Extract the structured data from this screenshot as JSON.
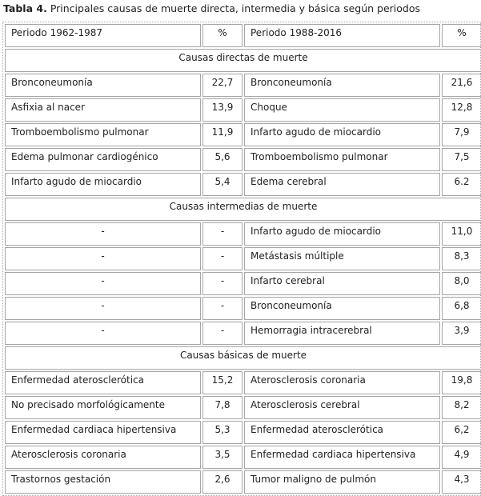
{
  "title": {
    "label": "Tabla 4.",
    "text": "Principales causas de muerte directa, intermedia y básica según periodos"
  },
  "header": [
    "Periodo 1962-1987",
    "%",
    "Periodo 1988-2016",
    "%"
  ],
  "sections": [
    {
      "title": "Causas directas de muerte",
      "rows": [
        [
          "Bronconeumonía",
          "22,7",
          "Bronconeumonía",
          "21,6"
        ],
        [
          "Asfixia al nacer",
          "13,9",
          "Choque",
          "12,8"
        ],
        [
          "Tromboembolismo pulmonar",
          "11,9",
          "Infarto agudo de miocardio",
          "7,9"
        ],
        [
          "Edema pulmonar cardiogénico",
          "5,6",
          "Tromboembolismo pulmonar",
          "7,5"
        ],
        [
          "Infarto agudo de miocardio",
          "5,4",
          "Edema cerebral",
          "6.2"
        ]
      ]
    },
    {
      "title": "Causas intermedias de muerte",
      "rows": [
        [
          "-",
          "-",
          "Infarto agudo de miocardio",
          "11,0"
        ],
        [
          "-",
          "-",
          "Metástasis múltiple",
          "8,3"
        ],
        [
          "-",
          "-",
          "Infarto cerebral",
          "8,0"
        ],
        [
          "-",
          "-",
          "Bronconeumonía",
          "6,8"
        ],
        [
          "-",
          "-",
          "Hemorragia intracerebral",
          "3,9"
        ]
      ]
    },
    {
      "title": "Causas básicas de muerte",
      "rows": [
        [
          "Enfermedad aterosclerótica",
          "15,2",
          "Aterosclerosis coronaria",
          "19,8"
        ],
        [
          "No precisado morfológicamente",
          "7,8",
          "Aterosclerosis cerebral",
          "8,2"
        ],
        [
          "Enfermedad cardiaca hipertensiva",
          "5,3",
          "Enfermedad aterosclerótica",
          "6,2"
        ],
        [
          "Aterosclerosis coronaria",
          "3,5",
          "Enfermedad cardiaca hipertensiva",
          "4,9"
        ],
        [
          "Trastornos gestación",
          "2,6",
          "Tumor maligno de pulmón",
          "4,3"
        ]
      ]
    }
  ]
}
